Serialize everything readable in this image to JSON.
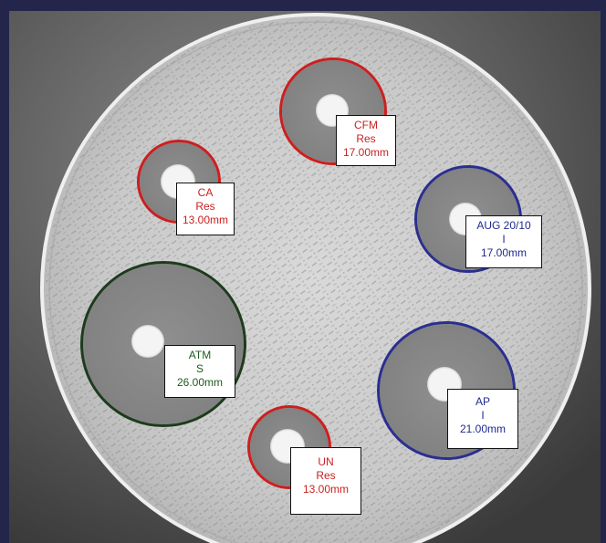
{
  "zones": [
    {
      "name": "cfm",
      "antibiotic": "CFM",
      "interpretation": "Res",
      "diameter": "17.00mm",
      "ring_color": "#cc1f1f",
      "text_color": "#cc1f1f"
    },
    {
      "name": "ca",
      "antibiotic": "CA",
      "interpretation": "Res",
      "diameter": "13.00mm",
      "ring_color": "#cc1f1f",
      "text_color": "#cc1f1f"
    },
    {
      "name": "aug",
      "antibiotic": "AUG 20/10",
      "interpretation": "I",
      "diameter": "17.00mm",
      "ring_color": "#2a2f8f",
      "text_color": "#1f2a8f"
    },
    {
      "name": "atm",
      "antibiotic": "ATM",
      "interpretation": "S",
      "diameter": "26.00mm",
      "ring_color": "#1d3b1d",
      "text_color": "#1e5a1e"
    },
    {
      "name": "ap",
      "antibiotic": "AP",
      "interpretation": "I",
      "diameter": "21.00mm",
      "ring_color": "#2a2f8f",
      "text_color": "#1f2a8f"
    },
    {
      "name": "un",
      "antibiotic": "UN",
      "interpretation": "Res",
      "diameter": "13.00mm",
      "ring_color": "#cc1f1f",
      "text_color": "#cc1f1f"
    }
  ]
}
